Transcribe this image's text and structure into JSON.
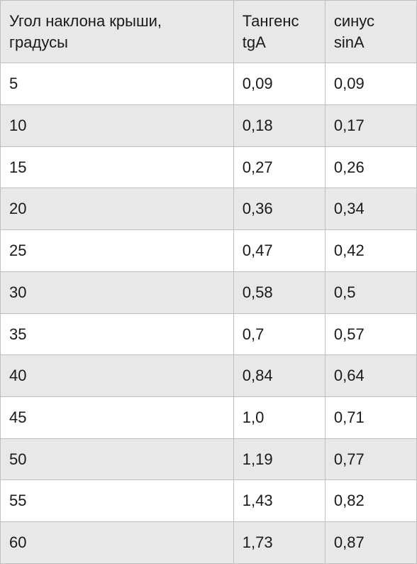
{
  "table": {
    "type": "table",
    "columns": [
      {
        "label_line1": "Угол наклона крыши,",
        "label_line2": "градусы",
        "width_pct": 56,
        "align": "left"
      },
      {
        "label_line1": "Тангенс",
        "label_line2": "tgA",
        "width_pct": 22,
        "align": "left"
      },
      {
        "label_line1": "синус",
        "label_line2": "sinA",
        "width_pct": 22,
        "align": "left"
      }
    ],
    "rows": [
      [
        "5",
        "0,09",
        "0,09"
      ],
      [
        "10",
        "0,18",
        "0,17"
      ],
      [
        "15",
        "0,27",
        "0,26"
      ],
      [
        "20",
        "0,36",
        "0,34"
      ],
      [
        "25",
        "0,47",
        "0,42"
      ],
      [
        "30",
        "0,58",
        "0,5"
      ],
      [
        "35",
        "0,7",
        "0,57"
      ],
      [
        "40",
        "0,84",
        "0,64"
      ],
      [
        "45",
        "1,0",
        "0,71"
      ],
      [
        "50",
        "1,19",
        "0,77"
      ],
      [
        "55",
        "1,43",
        "0,82"
      ],
      [
        "60",
        "1,73",
        "0,87"
      ]
    ],
    "header_bg": "#e8e8e8",
    "row_odd_bg": "#ffffff",
    "row_even_bg": "#e8e8e8",
    "border_color": "#bfbfbf",
    "text_color": "#1a1a1a",
    "font_size_pt": 16,
    "background_color": "#ffffff"
  }
}
